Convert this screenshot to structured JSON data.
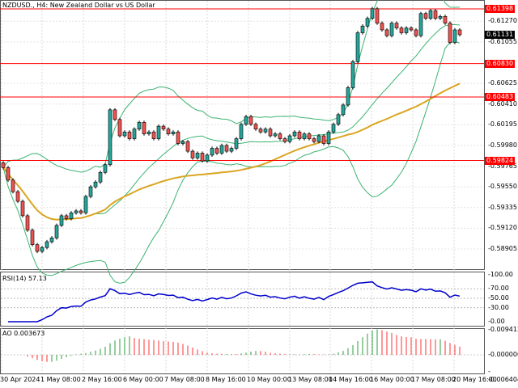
{
  "header": {
    "symbol_title": "NZDUSD., H4:  New Zealand Dollar vs US Dollar"
  },
  "colors": {
    "bull": "#26a69a",
    "bear": "#ef5350",
    "level_line": "#ff0000",
    "bollinger": "#3cb371",
    "ma": "#daa520",
    "rsi": "#0000cd",
    "ao_up": "#2e9e3e",
    "ao_down": "#ff3030"
  },
  "price_axis": [
    "0.61270",
    "0.61055",
    "0.60625",
    "0.60410",
    "0.60195",
    "0.59980",
    "0.59765",
    "0.59550",
    "0.59335",
    "0.59120",
    "0.58905"
  ],
  "levels": [
    {
      "price": 0.61398,
      "label": "0.61398"
    },
    {
      "price": 0.6083,
      "label": "0.60830"
    },
    {
      "price": 0.60483,
      "label": "0.60483"
    },
    {
      "price": 0.59824,
      "label": "0.59824"
    }
  ],
  "current_price": {
    "price": 0.61131,
    "label": "0.61131"
  },
  "rsi": {
    "title": "RSI(14) 57.13",
    "axis": [
      "100.00",
      "70.00",
      "50.00",
      "30.00",
      "0.00"
    ]
  },
  "ao": {
    "title": "AO 0.003673",
    "axis": [
      "0.009412",
      "0.000000",
      "-0.006404"
    ]
  },
  "time_axis": [
    "30 Apr 2024",
    "1 May 08:00",
    "2 May 16:00",
    "6 May 00:00",
    "7 May 08:00",
    "8 May 16:00",
    "10 May 00:00",
    "13 May 08:00",
    "14 May 16:00",
    "16 May 00:00",
    "17 May 08:00",
    "20 May 16:00"
  ],
  "chart_data": {
    "type": "candlestick",
    "closes": [
      0.5975,
      0.5962,
      0.595,
      0.594,
      0.5925,
      0.591,
      0.5895,
      0.5888,
      0.5892,
      0.5898,
      0.5902,
      0.5915,
      0.5925,
      0.5922,
      0.5928,
      0.593,
      0.5928,
      0.5945,
      0.5955,
      0.596,
      0.597,
      0.5978,
      0.6035,
      0.6025,
      0.6008,
      0.6012,
      0.6005,
      0.6015,
      0.6022,
      0.601,
      0.6012,
      0.6005,
      0.6018,
      0.6015,
      0.601,
      0.6012,
      0.6,
      0.6002,
      0.5992,
      0.5985,
      0.599,
      0.5982,
      0.5988,
      0.5995,
      0.599,
      0.5998,
      0.5992,
      0.5995,
      0.6005,
      0.602,
      0.6028,
      0.602,
      0.6015,
      0.6012,
      0.6015,
      0.6008,
      0.601,
      0.6005,
      0.6002,
      0.6008,
      0.6012,
      0.6005,
      0.601,
      0.6005,
      0.6002,
      0.6008,
      0.6,
      0.6012,
      0.602,
      0.603,
      0.604,
      0.6058,
      0.6085,
      0.6115,
      0.6122,
      0.613,
      0.614,
      0.6125,
      0.6118,
      0.6112,
      0.6125,
      0.612,
      0.6115,
      0.612,
      0.6118,
      0.6112,
      0.6135,
      0.613,
      0.6138,
      0.613,
      0.6132,
      0.6125,
      0.6105,
      0.6118,
      0.6113
    ]
  }
}
